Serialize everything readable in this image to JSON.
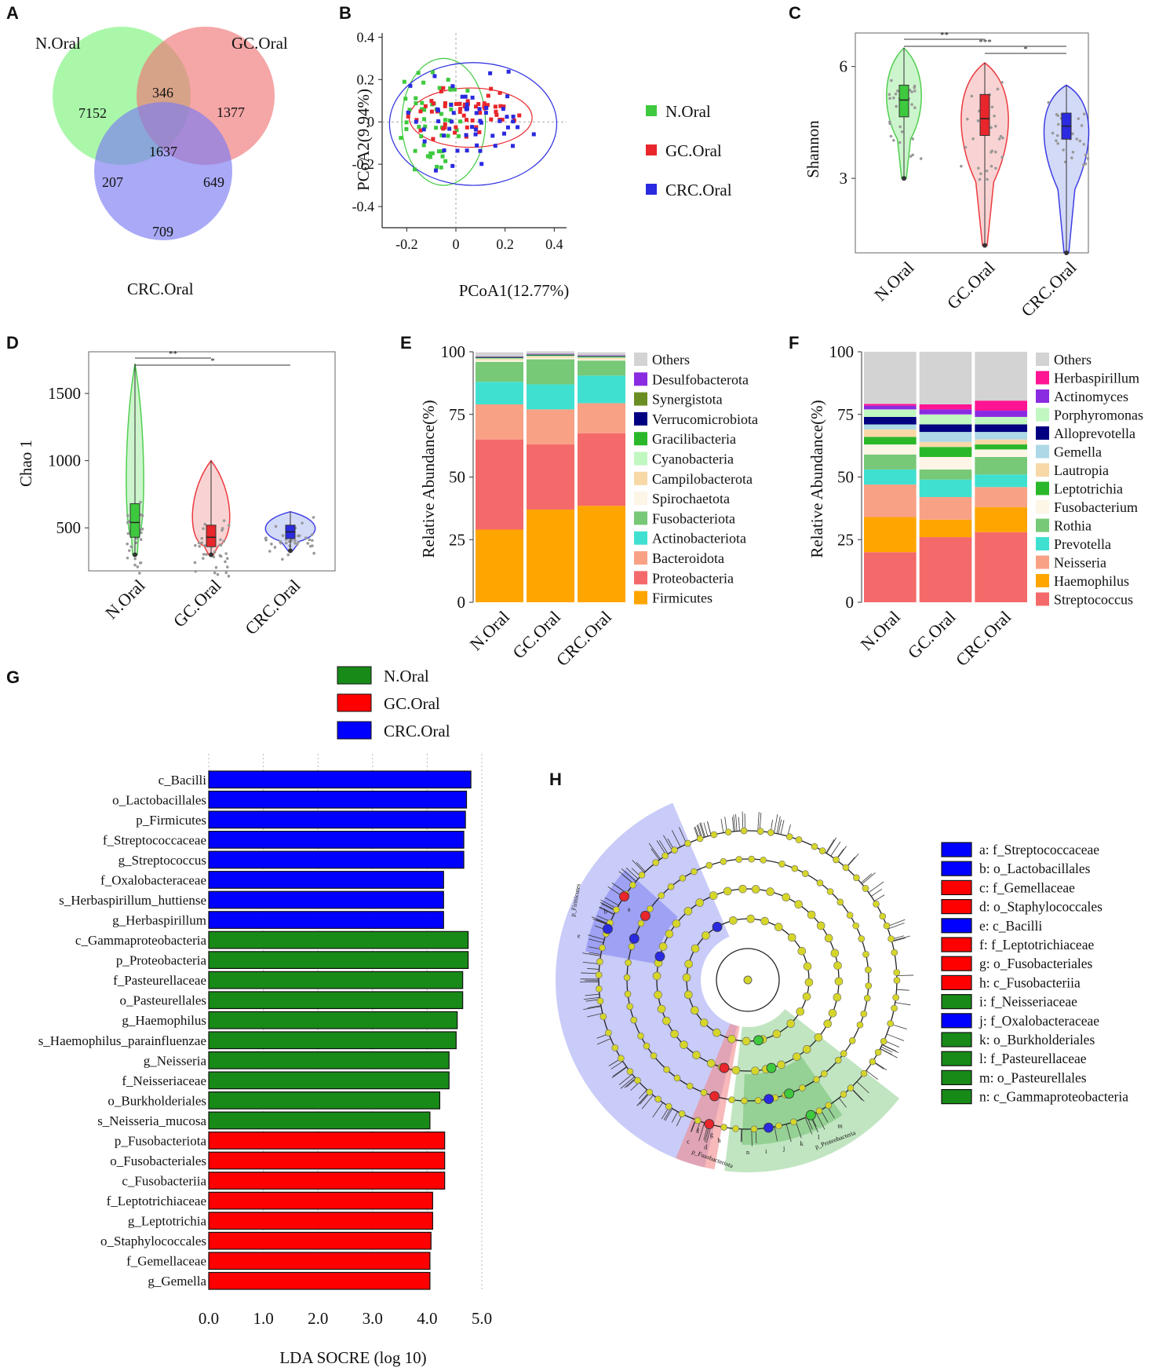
{
  "colors": {
    "n_oral": "#3ec93e",
    "gc_oral": "#e8262b",
    "crc_oral": "#2a2ae0",
    "venn_n": "#7cf27c",
    "venn_gc": "#f07676",
    "venn_crc": "#7b7bf2",
    "lda_green": "#188a18",
    "lda_red": "#ff0000",
    "lda_blue": "#0000ff",
    "clado_node": "#d6d62a"
  },
  "panel_labels": {
    "A": "A",
    "B": "B",
    "C": "C",
    "D": "D",
    "E": "E",
    "F": "F",
    "G": "G",
    "H": "H"
  },
  "venn": {
    "labels": {
      "n": "N.Oral",
      "gc": "GC.Oral",
      "crc": "CRC.Oral"
    },
    "counts": {
      "n_only": "7152",
      "n_gc": "346",
      "gc_only": "1377",
      "all": "1637",
      "n_crc": "207",
      "gc_crc": "649",
      "crc_only": "709"
    }
  },
  "chart_data": [
    {
      "type": "scatter",
      "panel": "B",
      "xlabel": "PCoA1(12.77%)",
      "ylabel": "PCoA2(9.94%)",
      "xlim": [
        -0.3,
        0.45
      ],
      "ylim": [
        -0.5,
        0.42
      ],
      "xticks": [
        "-0.2",
        "0",
        "0.2",
        "0.4"
      ],
      "yticks": [
        "0.4",
        "0.2",
        "0",
        "-0.2",
        "-0.4"
      ],
      "legend": [
        "N.Oral",
        "GC.Oral",
        "CRC.Oral"
      ],
      "ellipses": [
        {
          "group": "N.Oral",
          "cx": -0.05,
          "cy": 0.0,
          "rx": 0.17,
          "ry": 0.3
        },
        {
          "group": "GC.Oral",
          "cx": 0.06,
          "cy": 0.02,
          "rx": 0.25,
          "ry": 0.14
        },
        {
          "group": "CRC.Oral",
          "cx": 0.07,
          "cy": -0.01,
          "rx": 0.34,
          "ry": 0.29
        }
      ]
    },
    {
      "type": "violin",
      "panel": "C",
      "ylabel": "Shannon",
      "categories": [
        "N.Oral",
        "GC.Oral",
        "CRC.Oral"
      ],
      "ylim": [
        1.0,
        6.9
      ],
      "yticks": [
        "6",
        "3"
      ],
      "medians": [
        5.1,
        4.6,
        4.4
      ],
      "q1": [
        4.65,
        4.15,
        4.05
      ],
      "q3": [
        5.5,
        5.25,
        4.75
      ],
      "min": [
        3.0,
        1.2,
        1.0
      ],
      "max": [
        6.5,
        6.1,
        5.5
      ],
      "significance": [
        {
          "from": "N.Oral",
          "to": "GC.Oral",
          "label": "**"
        },
        {
          "from": "N.Oral",
          "to": "CRC.Oral",
          "label": "***"
        },
        {
          "from": "GC.Oral",
          "to": "CRC.Oral",
          "label": "*"
        }
      ]
    },
    {
      "type": "violin",
      "panel": "D",
      "ylabel": "Chao 1",
      "categories": [
        "N.Oral",
        "GC.Oral",
        "CRC.Oral"
      ],
      "ylim": [
        180,
        1810
      ],
      "yticks": [
        "1500",
        "1000",
        "500"
      ],
      "medians": [
        540,
        430,
        470
      ],
      "q1": [
        430,
        360,
        420
      ],
      "q3": [
        680,
        520,
        520
      ],
      "min": [
        300,
        300,
        330
      ],
      "max": [
        1720,
        1000,
        620
      ],
      "significance": [
        {
          "from": "N.Oral",
          "to": "GC.Oral",
          "label": "**"
        },
        {
          "from": "N.Oral",
          "to": "CRC.Oral",
          "label": "*"
        }
      ]
    },
    {
      "type": "bar",
      "stacked": true,
      "panel": "E",
      "ylabel": "Relative Abundance(%)",
      "categories": [
        "N.Oral",
        "GC.Oral",
        "CRC.Oral"
      ],
      "ylim": [
        0,
        100
      ],
      "yticks": [
        "100",
        "75",
        "50",
        "25",
        "0"
      ],
      "series": [
        {
          "name": "Firmicutes",
          "color": "#ffa500",
          "values": [
            29,
            37,
            38.5
          ]
        },
        {
          "name": "Proteobacteria",
          "color": "#f46a6a",
          "values": [
            36,
            26,
            29
          ]
        },
        {
          "name": "Bacteroidota",
          "color": "#f8a185",
          "values": [
            14,
            14,
            12
          ]
        },
        {
          "name": "Actinobacteriota",
          "color": "#40e0d0",
          "values": [
            9,
            10,
            11
          ]
        },
        {
          "name": "Fusobacteriota",
          "color": "#77c877",
          "values": [
            8,
            10,
            6
          ]
        },
        {
          "name": "Spirochaetota",
          "color": "#fdf5e6",
          "values": [
            0.6,
            0.6,
            0.5
          ]
        },
        {
          "name": "Campilobacterota",
          "color": "#f7d8a6",
          "values": [
            0.5,
            0.5,
            0.5
          ]
        },
        {
          "name": "Cyanobacteria",
          "color": "#c1f7c1",
          "values": [
            0.3,
            0.3,
            0.3
          ]
        },
        {
          "name": "Gracilibacteria",
          "color": "#2ab82a",
          "values": [
            0.2,
            0.2,
            0.2
          ]
        },
        {
          "name": "Verrucomicrobiota",
          "color": "#000080",
          "values": [
            0.2,
            0.2,
            0.2
          ]
        },
        {
          "name": "Synergistota",
          "color": "#6b8e23",
          "values": [
            0.2,
            0.2,
            0.2
          ]
        },
        {
          "name": "Desulfobacterota",
          "color": "#8a2be2",
          "values": [
            0.2,
            0.2,
            0.2
          ]
        },
        {
          "name": "Others",
          "color": "#d3d3d3",
          "values": [
            1.6,
            1.0,
            1.2
          ]
        }
      ]
    },
    {
      "type": "bar",
      "stacked": true,
      "panel": "F",
      "ylabel": "Relative Abundance(%)",
      "categories": [
        "N.Oral",
        "GC.Oral",
        "CRC.Oral"
      ],
      "ylim": [
        0,
        100
      ],
      "yticks": [
        "100",
        "75",
        "50",
        "25",
        "0"
      ],
      "series": [
        {
          "name": "Streptococcus",
          "color": "#f46a6a",
          "values": [
            20,
            26,
            28
          ]
        },
        {
          "name": "Haemophilus",
          "color": "#ffa500",
          "values": [
            14,
            7,
            10
          ]
        },
        {
          "name": "Neisseria",
          "color": "#f8a185",
          "values": [
            13,
            9,
            8
          ]
        },
        {
          "name": "Prevotella",
          "color": "#40e0d0",
          "values": [
            6,
            7,
            5
          ]
        },
        {
          "name": "Rothia",
          "color": "#77c877",
          "values": [
            6,
            4,
            7
          ]
        },
        {
          "name": "Fusobacterium",
          "color": "#fdf5e6",
          "values": [
            4,
            5,
            3
          ]
        },
        {
          "name": "Leptotrichia",
          "color": "#2ab82a",
          "values": [
            3,
            4,
            2
          ]
        },
        {
          "name": "Lautropia",
          "color": "#f7d8a6",
          "values": [
            3,
            2,
            2
          ]
        },
        {
          "name": "Gemella",
          "color": "#add8e6",
          "values": [
            2,
            4,
            3
          ]
        },
        {
          "name": "Alloprevotella",
          "color": "#000080",
          "values": [
            3,
            3,
            3
          ]
        },
        {
          "name": "Porphyromonas",
          "color": "#c1f7c1",
          "values": [
            3,
            4,
            3
          ]
        },
        {
          "name": "Actinomyces",
          "color": "#8a2be2",
          "values": [
            1.5,
            2,
            2.5
          ]
        },
        {
          "name": "Herbaspirillum",
          "color": "#ff1493",
          "values": [
            0.7,
            2,
            4
          ]
        },
        {
          "name": "Others",
          "color": "#d3d3d3",
          "values": [
            20.8,
            21,
            19.5
          ]
        }
      ]
    },
    {
      "type": "bar",
      "orientation": "horizontal",
      "panel": "G",
      "xlabel": "LDA SOCRE (log 10)",
      "xlim": [
        0,
        5.0
      ],
      "xticks": [
        "0.0",
        "1.0",
        "2.0",
        "3.0",
        "4.0",
        "5.0"
      ],
      "legend": [
        {
          "name": "N.Oral",
          "color": "#188a18"
        },
        {
          "name": "GC.Oral",
          "color": "#ff0000"
        },
        {
          "name": "CRC.Oral",
          "color": "#0000ff"
        }
      ],
      "bars": [
        {
          "label": "c_Bacilli",
          "value": 4.8,
          "group": "CRC.Oral"
        },
        {
          "label": "o_Lactobacillales",
          "value": 4.72,
          "group": "CRC.Oral"
        },
        {
          "label": "p_Firmicutes",
          "value": 4.7,
          "group": "CRC.Oral"
        },
        {
          "label": "f_Streptococcaceae",
          "value": 4.67,
          "group": "CRC.Oral"
        },
        {
          "label": "g_Streptococcus",
          "value": 4.67,
          "group": "CRC.Oral"
        },
        {
          "label": "f_Oxalobacteraceae",
          "value": 4.3,
          "group": "CRC.Oral"
        },
        {
          "label": "s_Herbaspirillum_huttiense",
          "value": 4.3,
          "group": "CRC.Oral"
        },
        {
          "label": "g_Herbaspirillum",
          "value": 4.3,
          "group": "CRC.Oral"
        },
        {
          "label": "c_Gammaproteobacteria",
          "value": 4.75,
          "group": "N.Oral"
        },
        {
          "label": "p_Proteobacteria",
          "value": 4.75,
          "group": "N.Oral"
        },
        {
          "label": "f_Pasteurellaceae",
          "value": 4.65,
          "group": "N.Oral"
        },
        {
          "label": "o_Pasteurellales",
          "value": 4.65,
          "group": "N.Oral"
        },
        {
          "label": "g_Haemophilus",
          "value": 4.55,
          "group": "N.Oral"
        },
        {
          "label": "s_Haemophilus_parainfluenzae",
          "value": 4.53,
          "group": "N.Oral"
        },
        {
          "label": "g_Neisseria",
          "value": 4.4,
          "group": "N.Oral"
        },
        {
          "label": "f_Neisseriaceae",
          "value": 4.4,
          "group": "N.Oral"
        },
        {
          "label": "o_Burkholderiales",
          "value": 4.23,
          "group": "N.Oral"
        },
        {
          "label": "s_Neisseria_mucosa",
          "value": 4.05,
          "group": "N.Oral"
        },
        {
          "label": "p_Fusobacteriota",
          "value": 4.32,
          "group": "GC.Oral"
        },
        {
          "label": "o_Fusobacteriales",
          "value": 4.32,
          "group": "GC.Oral"
        },
        {
          "label": "c_Fusobacteriia",
          "value": 4.32,
          "group": "GC.Oral"
        },
        {
          "label": "f_Leptotrichiaceae",
          "value": 4.1,
          "group": "GC.Oral"
        },
        {
          "label": "g_Leptotrichia",
          "value": 4.1,
          "group": "GC.Oral"
        },
        {
          "label": "o_Staphylococcales",
          "value": 4.07,
          "group": "GC.Oral"
        },
        {
          "label": "f_Gemellaceae",
          "value": 4.05,
          "group": "GC.Oral"
        },
        {
          "label": "g_Gemella",
          "value": 4.05,
          "group": "GC.Oral"
        }
      ]
    },
    {
      "type": "cladogram",
      "panel": "H",
      "sector_labels": [
        "p_Firmicutes",
        "p_Fusobacteriota",
        "p_Proteobacteria"
      ],
      "node_letters": [
        "a",
        "b",
        "c",
        "d",
        "e",
        "f",
        "g",
        "h",
        "i",
        "j",
        "k",
        "l",
        "m",
        "n"
      ],
      "legend": [
        {
          "text": "a: f_Streptococcaceae",
          "color": "#0000ff"
        },
        {
          "text": "b: o_Lactobacillales",
          "color": "#0000ff"
        },
        {
          "text": "c: f_Gemellaceae",
          "color": "#ff0000"
        },
        {
          "text": "d: o_Staphylococcales",
          "color": "#ff0000"
        },
        {
          "text": "e: c_Bacilli",
          "color": "#0000ff"
        },
        {
          "text": "f: f_Leptotrichiaceae",
          "color": "#ff0000"
        },
        {
          "text": "g: o_Fusobacteriales",
          "color": "#ff0000"
        },
        {
          "text": "h: c_Fusobacteriia",
          "color": "#ff0000"
        },
        {
          "text": "i: f_Neisseriaceae",
          "color": "#188a18"
        },
        {
          "text": "j: f_Oxalobacteraceae",
          "color": "#0000ff"
        },
        {
          "text": "k: o_Burkholderiales",
          "color": "#188a18"
        },
        {
          "text": "l: f_Pasteurellaceae",
          "color": "#188a18"
        },
        {
          "text": "m: o_Pasteurellales",
          "color": "#188a18"
        },
        {
          "text": "n: c_Gammaproteobacteria",
          "color": "#188a18"
        }
      ]
    }
  ]
}
